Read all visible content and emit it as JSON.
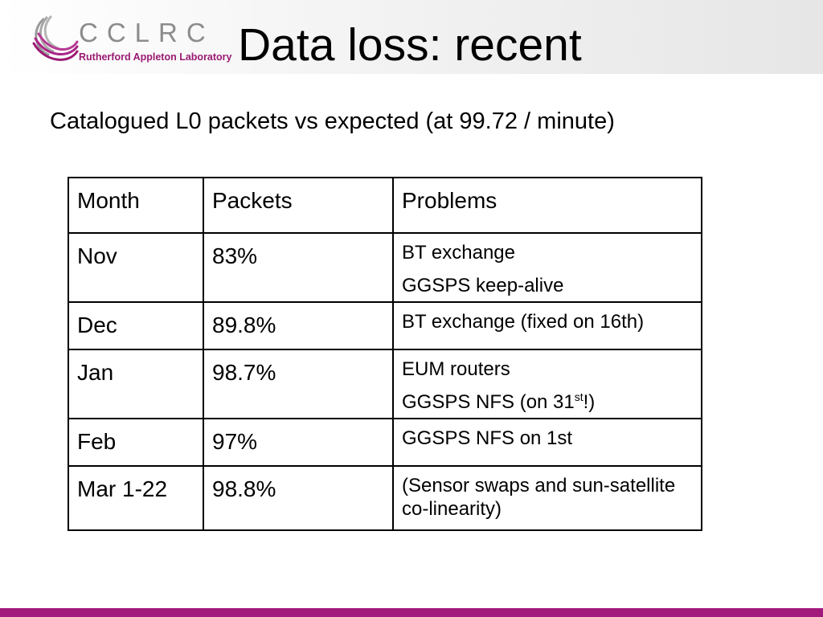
{
  "logo": {
    "word": "CCLRC",
    "subtitle": "Rutherford Appleton Laboratory"
  },
  "slide": {
    "title": "Data loss: recent",
    "subtitle": "Catalogued L0 packets vs expected (at 99.72 / minute)"
  },
  "table": {
    "headers": [
      "Month",
      "Packets",
      "Problems"
    ],
    "rows": [
      {
        "month": "Nov",
        "packets": "83%",
        "problems": [
          "BT exchange",
          "GGSPS keep-alive"
        ]
      },
      {
        "month": "Dec",
        "packets": "89.8%",
        "problems": [
          "BT exchange (fixed on 16th)"
        ]
      },
      {
        "month": "Jan",
        "packets": "98.7%",
        "problems": [
          "EUM routers",
          {
            "text": "GGSPS NFS (on 31",
            "sup": "st",
            "suffix": "!)"
          }
        ]
      },
      {
        "month": "Feb",
        "packets": "97%",
        "problems": [
          "GGSPS NFS on 1st"
        ]
      },
      {
        "month": "Mar 1-22",
        "packets": "98.8%",
        "problems": [
          "(Sensor swaps and sun-satellite co-linearity)"
        ]
      }
    ]
  },
  "colors": {
    "accent": "#a1197b",
    "logo_grey": "#8c8c8c"
  }
}
